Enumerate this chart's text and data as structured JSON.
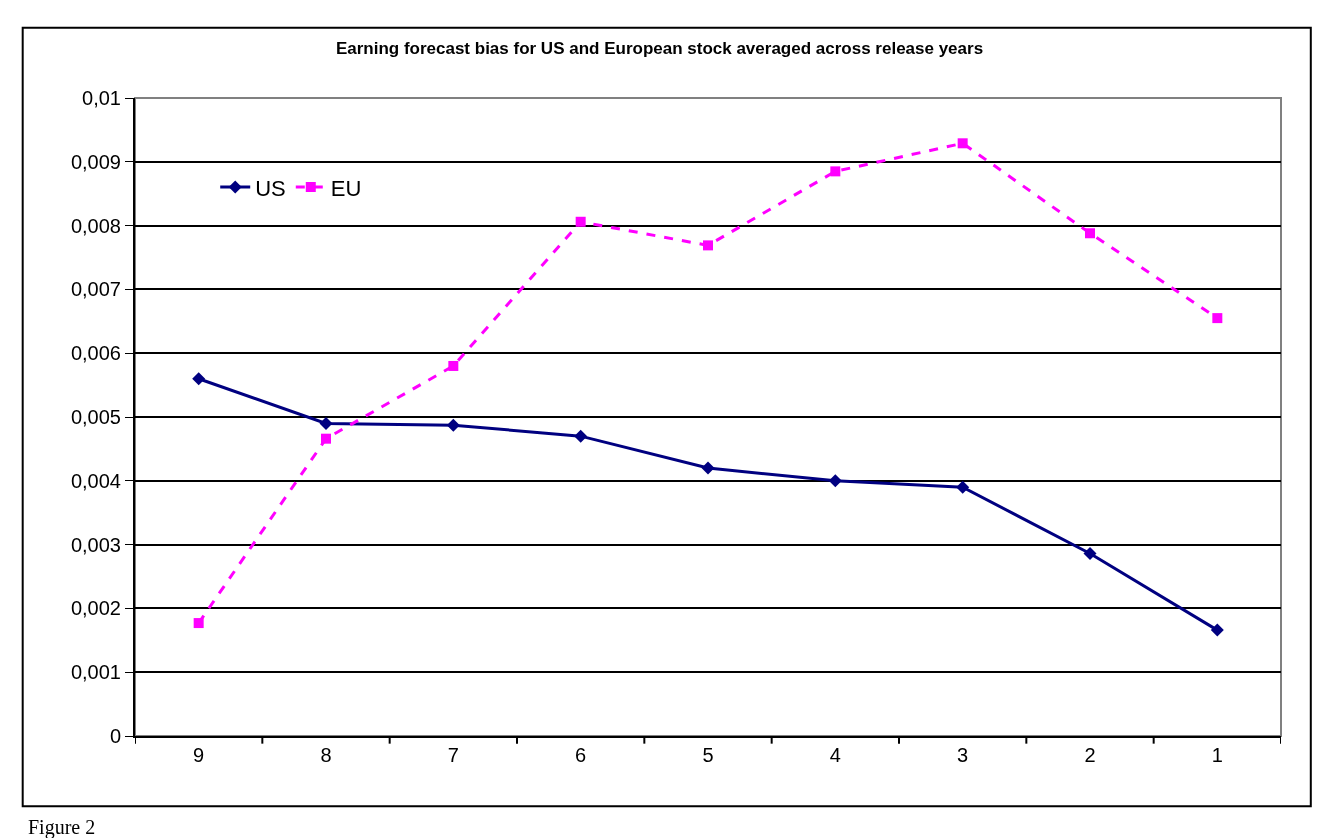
{
  "chart_data": {
    "type": "line",
    "title": "Earning forecast bias for US and European stock averaged across release years",
    "categories": [
      "9",
      "8",
      "7",
      "6",
      "5",
      "4",
      "3",
      "2",
      "1"
    ],
    "series": [
      {
        "name": "US",
        "color": "#000080",
        "marker": "diamond",
        "line_style": "solid",
        "values": [
          0.0056,
          0.0049,
          0.00487,
          0.0047,
          0.0042,
          0.004,
          0.0039,
          0.00286,
          0.00166
        ]
      },
      {
        "name": "EU",
        "color": "#ff00ff",
        "marker": "square",
        "line_style": "dashed",
        "values": [
          0.00177,
          0.00466,
          0.0058,
          0.00806,
          0.00769,
          0.00885,
          0.00929,
          0.00788,
          0.00655
        ]
      }
    ],
    "ylim": [
      0,
      0.01
    ],
    "yticks": [
      {
        "value": 0,
        "label": "0"
      },
      {
        "value": 0.001,
        "label": "0,001"
      },
      {
        "value": 0.002,
        "label": "0,002"
      },
      {
        "value": 0.003,
        "label": "0,003"
      },
      {
        "value": 0.004,
        "label": "0,004"
      },
      {
        "value": 0.005,
        "label": "0,005"
      },
      {
        "value": 0.006,
        "label": "0,006"
      },
      {
        "value": 0.007,
        "label": "0,007"
      },
      {
        "value": 0.008,
        "label": "0,008"
      },
      {
        "value": 0.009,
        "label": "0,009"
      },
      {
        "value": 0.01,
        "label": "0,01"
      }
    ],
    "grid": "y",
    "legend": "top left",
    "annotations": [
      "Figure 2"
    ]
  }
}
